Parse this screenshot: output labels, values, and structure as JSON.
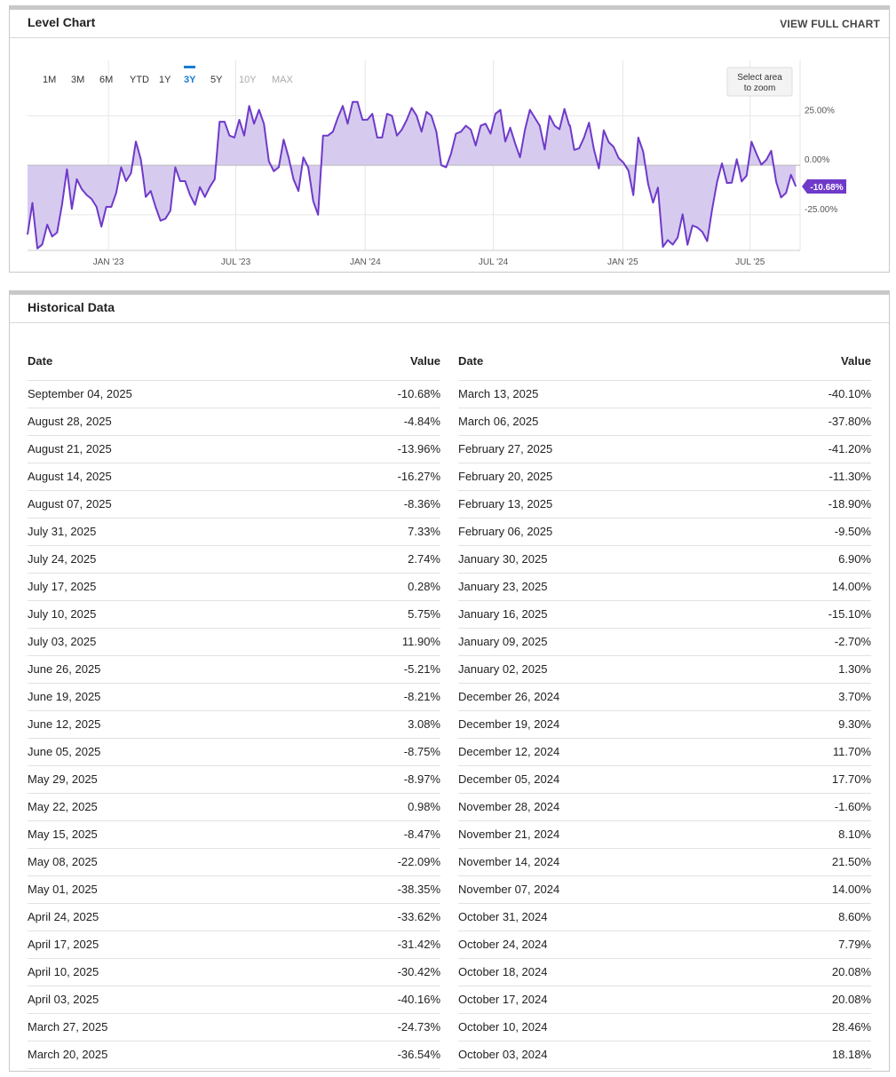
{
  "level_chart": {
    "title": "Level Chart",
    "view_full_label": "VIEW FULL CHART",
    "range_buttons": [
      {
        "label": "1M",
        "state": "normal"
      },
      {
        "label": "3M",
        "state": "normal"
      },
      {
        "label": "6M",
        "state": "normal"
      },
      {
        "label": "YTD",
        "state": "normal"
      },
      {
        "label": "1Y",
        "state": "normal"
      },
      {
        "label": "3Y",
        "state": "active"
      },
      {
        "label": "5Y",
        "state": "normal"
      },
      {
        "label": "10Y",
        "state": "disabled"
      },
      {
        "label": "MAX",
        "state": "disabled"
      }
    ],
    "zoom_hint": [
      "Select area",
      "to zoom"
    ],
    "current_value_label": "-10.68%",
    "colors": {
      "line": "#6f3ac9",
      "fill": "#d6cbef",
      "active": "#1a7cd4",
      "badge": "#6f3ac9"
    }
  },
  "chart_data": {
    "type": "area",
    "x_tick_labels": [
      "JAN '23",
      "JUL '23",
      "JAN '24",
      "JUL '24",
      "JAN '25",
      "JUL '25"
    ],
    "x_tick_dates": [
      "2023-01-01",
      "2023-07-01",
      "2024-01-01",
      "2024-07-01",
      "2025-01-01",
      "2025-07-01"
    ],
    "y_tick_labels": [
      "25.00%",
      "0.00%",
      "-25.00%"
    ],
    "y_tick_values": [
      25,
      0,
      -25
    ],
    "ylim": [
      -43,
      53
    ],
    "xlim": [
      "2022-09-08",
      "2025-09-10"
    ],
    "grid": true,
    "series": [
      {
        "values": [
          [
            "2022-09-08",
            -35
          ],
          [
            "2022-09-15",
            -19
          ],
          [
            "2022-09-22",
            -42
          ],
          [
            "2022-09-29",
            -40
          ],
          [
            "2022-10-06",
            -30
          ],
          [
            "2022-10-13",
            -36
          ],
          [
            "2022-10-20",
            -34
          ],
          [
            "2022-10-27",
            -20
          ],
          [
            "2022-11-03",
            -2
          ],
          [
            "2022-11-10",
            -22
          ],
          [
            "2022-11-17",
            -7
          ],
          [
            "2022-11-24",
            -12
          ],
          [
            "2022-12-01",
            -15
          ],
          [
            "2022-12-08",
            -17
          ],
          [
            "2022-12-15",
            -21
          ],
          [
            "2022-12-22",
            -31
          ],
          [
            "2022-12-29",
            -21
          ],
          [
            "2023-01-05",
            -21
          ],
          [
            "2023-01-12",
            -14
          ],
          [
            "2023-01-19",
            -1
          ],
          [
            "2023-01-26",
            -8
          ],
          [
            "2023-02-02",
            -4
          ],
          [
            "2023-02-09",
            12
          ],
          [
            "2023-02-16",
            3
          ],
          [
            "2023-02-23",
            -16
          ],
          [
            "2023-03-02",
            -13
          ],
          [
            "2023-03-09",
            -21
          ],
          [
            "2023-03-16",
            -28
          ],
          [
            "2023-03-23",
            -27
          ],
          [
            "2023-03-30",
            -23
          ],
          [
            "2023-04-06",
            -1
          ],
          [
            "2023-04-13",
            -8
          ],
          [
            "2023-04-20",
            -8
          ],
          [
            "2023-04-27",
            -15
          ],
          [
            "2023-05-04",
            -20
          ],
          [
            "2023-05-11",
            -11
          ],
          [
            "2023-05-18",
            -16
          ],
          [
            "2023-05-25",
            -11
          ],
          [
            "2023-06-01",
            -7
          ],
          [
            "2023-06-08",
            22
          ],
          [
            "2023-06-15",
            22
          ],
          [
            "2023-06-22",
            15
          ],
          [
            "2023-06-29",
            14
          ],
          [
            "2023-07-06",
            23
          ],
          [
            "2023-07-13",
            15
          ],
          [
            "2023-07-20",
            30
          ],
          [
            "2023-07-27",
            21
          ],
          [
            "2023-08-03",
            28
          ],
          [
            "2023-08-10",
            21
          ],
          [
            "2023-08-17",
            2
          ],
          [
            "2023-08-24",
            -3
          ],
          [
            "2023-08-31",
            -1
          ],
          [
            "2023-09-07",
            13
          ],
          [
            "2023-09-14",
            4
          ],
          [
            "2023-09-21",
            -7
          ],
          [
            "2023-09-28",
            -13
          ],
          [
            "2023-10-05",
            4
          ],
          [
            "2023-10-12",
            -1
          ],
          [
            "2023-10-19",
            -18
          ],
          [
            "2023-10-26",
            -25
          ],
          [
            "2023-11-02",
            15
          ],
          [
            "2023-11-09",
            15
          ],
          [
            "2023-11-16",
            17
          ],
          [
            "2023-11-23",
            24
          ],
          [
            "2023-11-30",
            30
          ],
          [
            "2023-12-07",
            21
          ],
          [
            "2023-12-14",
            32
          ],
          [
            "2023-12-21",
            32
          ],
          [
            "2023-12-28",
            23
          ],
          [
            "2024-01-04",
            23
          ],
          [
            "2024-01-11",
            26
          ],
          [
            "2024-01-18",
            14
          ],
          [
            "2024-01-25",
            14
          ],
          [
            "2024-02-01",
            26
          ],
          [
            "2024-02-08",
            25
          ],
          [
            "2024-02-15",
            15
          ],
          [
            "2024-02-22",
            18
          ],
          [
            "2024-02-29",
            23
          ],
          [
            "2024-03-07",
            29
          ],
          [
            "2024-03-14",
            25
          ],
          [
            "2024-03-21",
            17
          ],
          [
            "2024-03-28",
            27
          ],
          [
            "2024-04-04",
            25
          ],
          [
            "2024-04-11",
            17
          ],
          [
            "2024-04-18",
            0
          ],
          [
            "2024-04-25",
            -1
          ],
          [
            "2024-05-02",
            6
          ],
          [
            "2024-05-09",
            16
          ],
          [
            "2024-05-16",
            17
          ],
          [
            "2024-05-23",
            20
          ],
          [
            "2024-05-30",
            18
          ],
          [
            "2024-06-06",
            10
          ],
          [
            "2024-06-13",
            20
          ],
          [
            "2024-06-20",
            21
          ],
          [
            "2024-06-27",
            16
          ],
          [
            "2024-07-04",
            26
          ],
          [
            "2024-07-11",
            28
          ],
          [
            "2024-07-18",
            12
          ],
          [
            "2024-07-25",
            19
          ],
          [
            "2024-08-01",
            11
          ],
          [
            "2024-08-08",
            4
          ],
          [
            "2024-08-15",
            18
          ],
          [
            "2024-08-22",
            28
          ],
          [
            "2024-08-29",
            24
          ],
          [
            "2024-09-05",
            20
          ],
          [
            "2024-09-12",
            8
          ],
          [
            "2024-09-19",
            25
          ],
          [
            "2024-09-26",
            20
          ],
          [
            "2024-10-03",
            18.18
          ],
          [
            "2024-10-10",
            28.46
          ],
          [
            "2024-10-17",
            20.08
          ],
          [
            "2024-10-18",
            20.08
          ],
          [
            "2024-10-24",
            7.79
          ],
          [
            "2024-10-31",
            8.6
          ],
          [
            "2024-11-07",
            14
          ],
          [
            "2024-11-14",
            21.5
          ],
          [
            "2024-11-21",
            8.1
          ],
          [
            "2024-11-28",
            -1.6
          ],
          [
            "2024-12-05",
            17.7
          ],
          [
            "2024-12-12",
            11.7
          ],
          [
            "2024-12-19",
            9.3
          ],
          [
            "2024-12-26",
            3.7
          ],
          [
            "2025-01-02",
            1.3
          ],
          [
            "2025-01-09",
            -2.7
          ],
          [
            "2025-01-16",
            -15.1
          ],
          [
            "2025-01-23",
            14
          ],
          [
            "2025-01-30",
            6.9
          ],
          [
            "2025-02-06",
            -9.5
          ],
          [
            "2025-02-13",
            -18.9
          ],
          [
            "2025-02-20",
            -11.3
          ],
          [
            "2025-02-27",
            -41.2
          ],
          [
            "2025-03-06",
            -37.8
          ],
          [
            "2025-03-13",
            -40.1
          ],
          [
            "2025-03-20",
            -36.54
          ],
          [
            "2025-03-27",
            -24.73
          ],
          [
            "2025-04-03",
            -40.16
          ],
          [
            "2025-04-10",
            -30.42
          ],
          [
            "2025-04-17",
            -31.42
          ],
          [
            "2025-04-24",
            -33.62
          ],
          [
            "2025-05-01",
            -38.35
          ],
          [
            "2025-05-08",
            -22.09
          ],
          [
            "2025-05-15",
            -8.47
          ],
          [
            "2025-05-22",
            0.98
          ],
          [
            "2025-05-29",
            -8.97
          ],
          [
            "2025-06-05",
            -8.75
          ],
          [
            "2025-06-12",
            3.08
          ],
          [
            "2025-06-19",
            -8.21
          ],
          [
            "2025-06-26",
            -5.21
          ],
          [
            "2025-07-03",
            11.9
          ],
          [
            "2025-07-10",
            5.75
          ],
          [
            "2025-07-17",
            0.28
          ],
          [
            "2025-07-24",
            2.74
          ],
          [
            "2025-07-31",
            7.33
          ],
          [
            "2025-08-07",
            -8.36
          ],
          [
            "2025-08-14",
            -16.27
          ],
          [
            "2025-08-21",
            -13.96
          ],
          [
            "2025-08-28",
            -4.84
          ],
          [
            "2025-09-04",
            -10.68
          ]
        ]
      }
    ]
  },
  "historical": {
    "title": "Historical Data",
    "headers": {
      "date": "Date",
      "value": "Value"
    },
    "left": [
      [
        "September 04, 2025",
        "-10.68%"
      ],
      [
        "August 28, 2025",
        "-4.84%"
      ],
      [
        "August 21, 2025",
        "-13.96%"
      ],
      [
        "August 14, 2025",
        "-16.27%"
      ],
      [
        "August 07, 2025",
        "-8.36%"
      ],
      [
        "July 31, 2025",
        "7.33%"
      ],
      [
        "July 24, 2025",
        "2.74%"
      ],
      [
        "July 17, 2025",
        "0.28%"
      ],
      [
        "July 10, 2025",
        "5.75%"
      ],
      [
        "July 03, 2025",
        "11.90%"
      ],
      [
        "June 26, 2025",
        "-5.21%"
      ],
      [
        "June 19, 2025",
        "-8.21%"
      ],
      [
        "June 12, 2025",
        "3.08%"
      ],
      [
        "June 05, 2025",
        "-8.75%"
      ],
      [
        "May 29, 2025",
        "-8.97%"
      ],
      [
        "May 22, 2025",
        "0.98%"
      ],
      [
        "May 15, 2025",
        "-8.47%"
      ],
      [
        "May 08, 2025",
        "-22.09%"
      ],
      [
        "May 01, 2025",
        "-38.35%"
      ],
      [
        "April 24, 2025",
        "-33.62%"
      ],
      [
        "April 17, 2025",
        "-31.42%"
      ],
      [
        "April 10, 2025",
        "-30.42%"
      ],
      [
        "April 03, 2025",
        "-40.16%"
      ],
      [
        "March 27, 2025",
        "-24.73%"
      ],
      [
        "March 20, 2025",
        "-36.54%"
      ]
    ],
    "right": [
      [
        "March 13, 2025",
        "-40.10%"
      ],
      [
        "March 06, 2025",
        "-37.80%"
      ],
      [
        "February 27, 2025",
        "-41.20%"
      ],
      [
        "February 20, 2025",
        "-11.30%"
      ],
      [
        "February 13, 2025",
        "-18.90%"
      ],
      [
        "February 06, 2025",
        "-9.50%"
      ],
      [
        "January 30, 2025",
        "6.90%"
      ],
      [
        "January 23, 2025",
        "14.00%"
      ],
      [
        "January 16, 2025",
        "-15.10%"
      ],
      [
        "January 09, 2025",
        "-2.70%"
      ],
      [
        "January 02, 2025",
        "1.30%"
      ],
      [
        "December 26, 2024",
        "3.70%"
      ],
      [
        "December 19, 2024",
        "9.30%"
      ],
      [
        "December 12, 2024",
        "11.70%"
      ],
      [
        "December 05, 2024",
        "17.70%"
      ],
      [
        "November 28, 2024",
        "-1.60%"
      ],
      [
        "November 21, 2024",
        "8.10%"
      ],
      [
        "November 14, 2024",
        "21.50%"
      ],
      [
        "November 07, 2024",
        "14.00%"
      ],
      [
        "October 31, 2024",
        "8.60%"
      ],
      [
        "October 24, 2024",
        "7.79%"
      ],
      [
        "October 18, 2024",
        "20.08%"
      ],
      [
        "October 17, 2024",
        "20.08%"
      ],
      [
        "October 10, 2024",
        "28.46%"
      ],
      [
        "October 03, 2024",
        "18.18%"
      ]
    ]
  }
}
